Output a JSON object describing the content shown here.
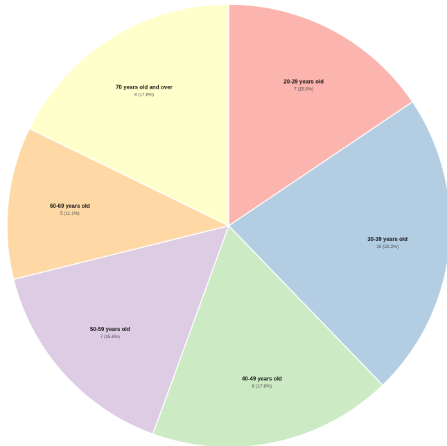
{
  "chart_data": {
    "type": "pie",
    "title": "",
    "start_angle_deg": 90,
    "direction": "clockwise",
    "slices": [
      {
        "label": "20-29 years old",
        "value": 7,
        "value_text": "7 (15.6%)",
        "color": "#fbb4ae"
      },
      {
        "label": "30-39 years old",
        "value": 10,
        "value_text": "10 (22.2%)",
        "color": "#b3cde3"
      },
      {
        "label": "40-49 years old",
        "value": 8,
        "value_text": "8 (17.8%)",
        "color": "#ccebc5"
      },
      {
        "label": "50-59 years old",
        "value": 7,
        "value_text": "7 (15.6%)",
        "color": "#decbe4"
      },
      {
        "label": "60-69 years old",
        "value": 5,
        "value_text": "5 (11.1%)",
        "color": "#fed9a6"
      },
      {
        "label": "70 years old and over",
        "value": 8,
        "value_text": "8 (17.8%)",
        "color": "#ffffcc"
      }
    ]
  }
}
